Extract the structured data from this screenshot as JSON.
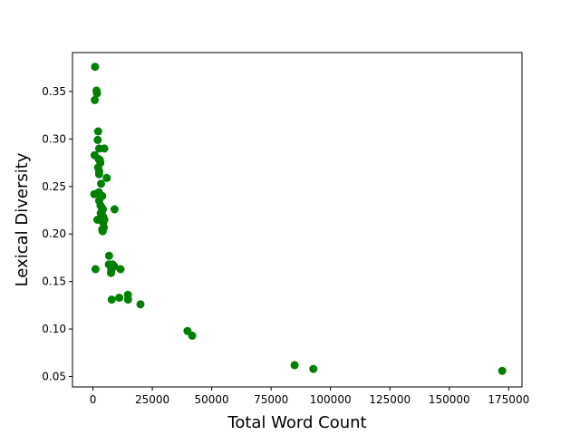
{
  "chart_data": {
    "type": "scatter",
    "xlabel": "Total Word Count",
    "ylabel": "Lexical Diversity",
    "xlim": [
      -8600,
      180600
    ],
    "ylim": [
      0.039,
      0.391
    ],
    "xticks": [
      0,
      25000,
      50000,
      75000,
      100000,
      125000,
      150000,
      175000
    ],
    "yticks": [
      0.05,
      0.1,
      0.15,
      0.2,
      0.25,
      0.3,
      0.35
    ],
    "marker_color": "#008000",
    "grid": false,
    "series": [
      {
        "x": [
          900,
          1500,
          1700,
          800,
          2200,
          2000,
          2600,
          4800,
          700,
          2400,
          2900,
          3100,
          2200,
          2600,
          5800,
          2600,
          3400,
          600,
          2500,
          3200,
          3900,
          2600,
          3200,
          3700,
          4200,
          9100,
          3300,
          3900,
          4400,
          1900,
          4800,
          4300,
          4600,
          3900,
          4100,
          6800,
          6700,
          8300,
          9000,
          8200,
          7700,
          11600,
          7600,
          1100,
          14700,
          11100,
          7900,
          14800,
          20000,
          39800,
          41800,
          84900,
          92800,
          172300
        ],
        "y": [
          0.376,
          0.351,
          0.348,
          0.341,
          0.308,
          0.299,
          0.29,
          0.29,
          0.283,
          0.279,
          0.278,
          0.275,
          0.27,
          0.266,
          0.259,
          0.263,
          0.253,
          0.242,
          0.244,
          0.24,
          0.24,
          0.235,
          0.23,
          0.228,
          0.226,
          0.226,
          0.222,
          0.22,
          0.218,
          0.215,
          0.215,
          0.212,
          0.207,
          0.205,
          0.203,
          0.177,
          0.168,
          0.168,
          0.166,
          0.165,
          0.162,
          0.163,
          0.159,
          0.163,
          0.136,
          0.133,
          0.131,
          0.131,
          0.126,
          0.098,
          0.093,
          0.062,
          0.058,
          0.056
        ]
      }
    ]
  }
}
